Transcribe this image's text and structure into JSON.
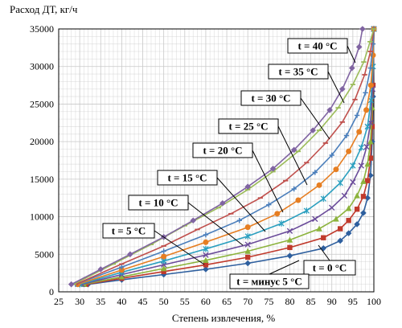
{
  "chart_data": {
    "type": "line",
    "ylabel": "Расход ДТ, кг/ч",
    "xlabel": "Степень извлечения, %",
    "xlim": [
      25,
      100
    ],
    "ylim": [
      0,
      35000
    ],
    "x_ticks": [
      "25",
      "30",
      "35",
      "40",
      "45",
      "50",
      "55",
      "60",
      "65",
      "70",
      "75",
      "80",
      "85",
      "90",
      "95",
      "100"
    ],
    "y_ticks": [
      "0",
      "5000",
      "10000",
      "15000",
      "20000",
      "25000",
      "30000",
      "35000"
    ],
    "grid": true,
    "series": [
      {
        "name": "t = минус 5 °C",
        "color": "#2e5f9e",
        "marker": "diamond",
        "x": [
          32,
          40,
          50,
          60,
          70,
          80,
          88,
          92,
          94,
          96,
          97.5,
          98.5,
          99.2,
          99.6,
          99.8,
          100
        ],
        "y": [
          1000,
          1600,
          2300,
          3000,
          3800,
          4800,
          5800,
          6800,
          7800,
          9000,
          10500,
          12500,
          15500,
          20000,
          26000,
          35000
        ]
      },
      {
        "name": "t = 0 °C",
        "color": "#c0392b",
        "marker": "square",
        "x": [
          31.5,
          40,
          50,
          60,
          70,
          80,
          88,
          92,
          94,
          96,
          97.5,
          98.5,
          99.2,
          99.6,
          99.8,
          100
        ],
        "y": [
          1000,
          1800,
          2700,
          3600,
          4600,
          5900,
          7200,
          8400,
          9500,
          11000,
          12700,
          14800,
          17800,
          22000,
          27500,
          35000
        ]
      },
      {
        "name": "",
        "color": "#8cb33d",
        "marker": "triangle",
        "x": [
          31,
          40,
          50,
          60,
          70,
          80,
          87,
          91,
          94,
          96,
          97.5,
          98.5,
          99.2,
          99.6,
          100
        ],
        "y": [
          1000,
          2000,
          3100,
          4200,
          5400,
          6900,
          8400,
          9700,
          11100,
          12800,
          14700,
          17000,
          20000,
          24500,
          35000
        ]
      },
      {
        "name": "",
        "color": "#6b4c9a",
        "marker": "x",
        "x": [
          30.5,
          40,
          50,
          60,
          70,
          80,
          86,
          90,
          93,
          95,
          97,
          98.3,
          99.2,
          99.7,
          100
        ],
        "y": [
          1000,
          2300,
          3600,
          4900,
          6300,
          8100,
          9700,
          11200,
          12800,
          14600,
          16800,
          19300,
          22500,
          27000,
          35000
        ]
      },
      {
        "name": "",
        "color": "#2b9fbf",
        "marker": "star",
        "x": [
          30,
          40,
          50,
          60,
          70,
          78,
          84,
          88,
          92,
          95,
          97,
          98.5,
          99.3,
          99.8,
          100
        ],
        "y": [
          1000,
          2600,
          4100,
          5700,
          7400,
          9100,
          10800,
          12400,
          14500,
          16800,
          19200,
          22000,
          25500,
          30000,
          35000
        ]
      },
      {
        "name": "",
        "color": "#e67e22",
        "marker": "circle",
        "x": [
          29.5,
          40,
          50,
          60,
          70,
          77,
          82,
          87,
          91,
          94,
          96.5,
          98.2,
          99.3,
          99.8,
          100
        ],
        "y": [
          1000,
          2900,
          4700,
          6600,
          8600,
          10400,
          12200,
          14200,
          16300,
          18700,
          21300,
          24200,
          27500,
          31500,
          35000
        ]
      },
      {
        "name": "",
        "color": "#4a7ebb",
        "marker": "plus",
        "x": [
          29,
          40,
          50,
          60,
          68,
          75,
          81,
          86,
          90,
          93.5,
          96,
          98,
          99.2,
          99.8,
          100
        ],
        "y": [
          1000,
          3300,
          5400,
          7600,
          9500,
          11600,
          13700,
          15900,
          18200,
          20800,
          23500,
          26500,
          29800,
          33000,
          35000
        ]
      },
      {
        "name": "",
        "color": "#c0504d",
        "marker": "dash",
        "x": [
          29,
          40,
          50,
          58,
          66,
          73,
          79,
          84,
          88.5,
          92.5,
          95.5,
          97.8,
          99.2,
          100
        ],
        "y": [
          1000,
          3700,
          6100,
          8300,
          10400,
          12500,
          14800,
          17200,
          19800,
          22600,
          25600,
          28900,
          32000,
          35000
        ]
      },
      {
        "name": "",
        "color": "#9bbb59",
        "marker": "dash",
        "x": [
          28.5,
          38,
          47,
          55,
          63,
          70,
          76,
          82,
          87,
          91.5,
          95,
          97.6,
          99.1,
          100
        ],
        "y": [
          1000,
          3700,
          6300,
          8800,
          11200,
          13600,
          16000,
          18700,
          21500,
          24500,
          27600,
          30600,
          33300,
          35000
        ]
      },
      {
        "name": "",
        "color": "#8064a2",
        "marker": "diamond",
        "x": [
          28,
          35,
          42,
          50,
          57,
          64,
          70,
          76,
          81,
          85.5,
          89.5,
          92.5,
          94.8,
          96.5,
          97.3
        ],
        "y": [
          1000,
          3000,
          5000,
          7300,
          9500,
          11800,
          14000,
          16400,
          18900,
          21500,
          24200,
          27000,
          29800,
          32600,
          35000
        ]
      }
    ],
    "annotations": [
      "t = 40 °C",
      "t = 35 °C",
      "t = 30 °C",
      "t = 25 °C",
      "t = 20 °C",
      "t = 15 °C",
      "t = 10 °C",
      "t = 5 °C",
      "t = 0 °C",
      "t = минус 5 °C"
    ]
  }
}
